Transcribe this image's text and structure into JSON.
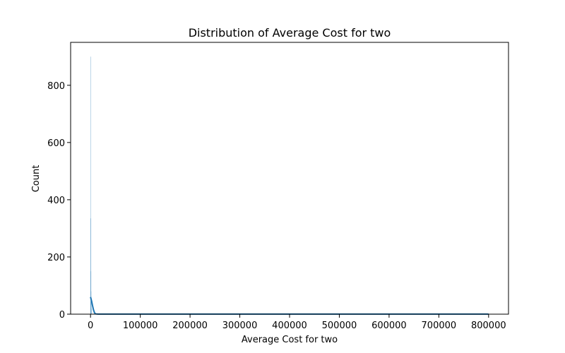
{
  "chart_data": {
    "type": "histogram",
    "title": "Distribution of Average Cost for two",
    "xlabel": "Average Cost for two",
    "ylabel": "Count",
    "xlim": [
      -40000,
      840000
    ],
    "ylim": [
      0,
      950
    ],
    "xticks": [
      0,
      100000,
      200000,
      300000,
      400000,
      500000,
      600000,
      700000,
      800000
    ],
    "xtick_labels": [
      "0",
      "100000",
      "200000",
      "300000",
      "400000",
      "500000",
      "600000",
      "700000",
      "800000"
    ],
    "yticks": [
      0,
      200,
      400,
      600,
      800
    ],
    "ytick_labels": [
      "0",
      "200",
      "400",
      "600",
      "800"
    ],
    "bar_color": "#1f77b4",
    "kde_color": "#1f77b4",
    "bins": [
      {
        "x_start": 0,
        "x_end": 200,
        "count": 900
      },
      {
        "x_start": 200,
        "x_end": 400,
        "count": 335
      },
      {
        "x_start": 400,
        "x_end": 600,
        "count": 150
      },
      {
        "x_start": 600,
        "x_end": 800,
        "count": 80
      },
      {
        "x_start": 800,
        "x_end": 1000,
        "count": 45
      },
      {
        "x_start": 1000,
        "x_end": 2000,
        "count": 20
      },
      {
        "x_start": 2000,
        "x_end": 800000,
        "count": 1
      }
    ],
    "kde": {
      "x": [
        0,
        2000,
        4000,
        6000,
        8000,
        10000,
        15000,
        20000,
        100000,
        200000,
        300000,
        400000,
        500000,
        600000,
        700000,
        800000
      ],
      "y": [
        60,
        47,
        30,
        15,
        5,
        1,
        0.3,
        0.2,
        0.2,
        0.2,
        0.2,
        0.2,
        0.2,
        0.2,
        0.2,
        0.4
      ]
    }
  }
}
